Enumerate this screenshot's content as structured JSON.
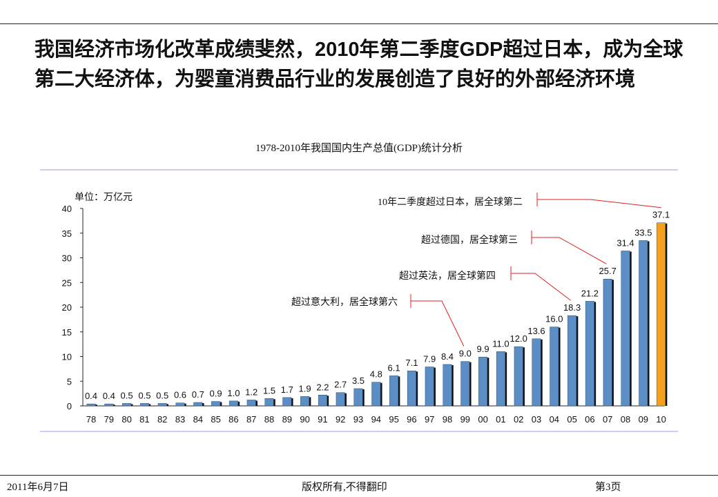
{
  "headline": {
    "part1": "我国经济市场化改革成绩斐然，",
    "part2": "2010",
    "part3": "年第二季度",
    "part4": "GDP",
    "part5": "超过日本，成为全球第二大经济体，为婴童消费品行业的发展创造了良好的外部经济环境"
  },
  "footer": {
    "date": "2011年6月7日",
    "copyright": "版权所有,不得翻印",
    "page": "第3页"
  },
  "colors": {
    "bar": "#5b8ec4",
    "highlight": "#f5a01a",
    "annotation_line": "#e02020",
    "rule": "#9999dd"
  },
  "chart_data": {
    "type": "bar",
    "title": "1978-2010年我国国内生产总值(GDP)统计分析",
    "unit_label": "单位：万亿元",
    "ylim": [
      0,
      40
    ],
    "yticks": [
      0,
      5,
      10,
      15,
      20,
      25,
      30,
      35,
      40
    ],
    "categories": [
      "78",
      "79",
      "80",
      "81",
      "82",
      "83",
      "84",
      "85",
      "86",
      "87",
      "88",
      "89",
      "90",
      "91",
      "92",
      "93",
      "94",
      "95",
      "96",
      "97",
      "98",
      "99",
      "00",
      "01",
      "02",
      "03",
      "04",
      "05",
      "06",
      "07",
      "08",
      "09",
      "10"
    ],
    "values": [
      0.4,
      0.4,
      0.5,
      0.5,
      0.5,
      0.6,
      0.7,
      0.9,
      1.0,
      1.2,
      1.5,
      1.7,
      1.9,
      2.2,
      2.7,
      3.5,
      4.8,
      6.1,
      7.1,
      7.9,
      8.4,
      9.0,
      9.9,
      11.0,
      12.0,
      13.6,
      16.0,
      18.3,
      21.2,
      25.7,
      31.4,
      33.5,
      37.1
    ],
    "value_labels": [
      "0.4",
      "0.4",
      "0.5",
      "0.5",
      "0.5",
      "0.6",
      "0.7",
      "0.9",
      "1.0",
      "1.2",
      "1.5",
      "1.7",
      "1.9",
      "2.2",
      "2.7",
      "3.5",
      "4.8",
      "6.1",
      "7.1",
      "7.9",
      "8.4",
      "9.0",
      "9.9",
      "11.0",
      "12.0",
      "13.6",
      "16.0",
      "18.3",
      "21.2",
      "25.7",
      "31.4",
      "33.5",
      "37.1"
    ],
    "highlight_category": "10",
    "annotations": [
      {
        "text": "超过意大利，居全球第六",
        "category": "99"
      },
      {
        "text": "超过英法，居全球第四",
        "category": "05"
      },
      {
        "text": "超过德国，居全球第三",
        "category": "07"
      },
      {
        "text": "10年二季度超过日本，居全球第二",
        "category": "10"
      }
    ]
  }
}
